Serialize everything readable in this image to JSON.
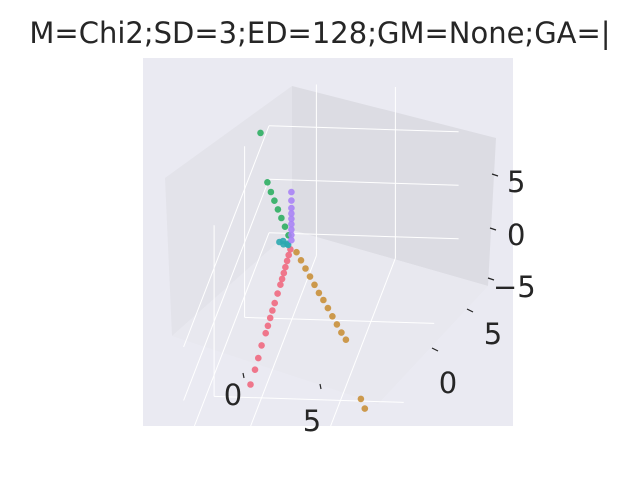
{
  "title": "M=Chi2;SD=3;ED=128;GM=None;GA=|",
  "chart_data": {
    "type": "scatter",
    "projection": "3d",
    "title": "M=Chi2;SD=3;ED=128;GM=None;GA=|",
    "xlim": [
      -4,
      10
    ],
    "ylim": [
      -3,
      9
    ],
    "zlim": [
      -7,
      9
    ],
    "x_ticks": [
      0,
      5
    ],
    "y_ticks": [
      0,
      5
    ],
    "z_ticks": [
      -5,
      0,
      5
    ],
    "x_tick_labels": [
      "0",
      "5"
    ],
    "y_tick_labels": [
      "0",
      "5"
    ],
    "z_tick_labels": [
      "−5",
      "0",
      "5"
    ],
    "grid": true,
    "legend": "none",
    "colors": {
      "pane": "#EAEAF2",
      "grid": "#FFFFFF",
      "text": "#262626",
      "series": [
        "#F0697F",
        "#C9903A",
        "#2EAE63",
        "#2CA8B0",
        "#A983F5"
      ]
    },
    "series": [
      {
        "color": "#F0697F",
        "points": [
          [
            0.4,
            0.05,
            0.1
          ],
          [
            0.8,
            0.1,
            0.15
          ],
          [
            1.2,
            0.15,
            0.2
          ],
          [
            1.6,
            0.2,
            0.2
          ],
          [
            2.0,
            0.25,
            0.25
          ],
          [
            2.4,
            0.3,
            0.3
          ],
          [
            2.8,
            0.35,
            0.35
          ],
          [
            3.4,
            0.4,
            0.4
          ],
          [
            4.0,
            0.45,
            0.4
          ],
          [
            4.5,
            0.5,
            0.45
          ],
          [
            5.0,
            0.55,
            0.5
          ],
          [
            5.5,
            0.6,
            0.5
          ],
          [
            6.0,
            0.65,
            0.55
          ],
          [
            6.8,
            0.7,
            0.6
          ],
          [
            7.6,
            0.8,
            0.6
          ],
          [
            8.4,
            0.9,
            0.7
          ],
          [
            9.4,
            1.0,
            0.8
          ]
        ]
      },
      {
        "color": "#C9903A",
        "points": [
          [
            0.3,
            0.4,
            -0.3
          ],
          [
            0.6,
            0.8,
            -0.6
          ],
          [
            0.9,
            1.2,
            -0.9
          ],
          [
            1.2,
            1.6,
            -1.2
          ],
          [
            1.5,
            2.0,
            -1.5
          ],
          [
            1.8,
            2.4,
            -1.8
          ],
          [
            2.1,
            2.8,
            -2.0
          ],
          [
            2.4,
            3.2,
            -2.3
          ],
          [
            2.7,
            3.6,
            -2.6
          ],
          [
            3.0,
            4.0,
            -2.9
          ],
          [
            3.3,
            4.4,
            -3.2
          ],
          [
            3.6,
            4.8,
            -3.4
          ],
          [
            5.8,
            6.6,
            -5.6
          ],
          [
            6.2,
            7.0,
            -5.9
          ]
        ]
      },
      {
        "color": "#2EAE63",
        "points": [
          [
            -0.2,
            -0.3,
            0.5
          ],
          [
            -0.4,
            -0.6,
            1.0
          ],
          [
            -0.6,
            -0.9,
            1.5
          ],
          [
            -0.8,
            -1.2,
            2.0
          ],
          [
            -1.0,
            -1.5,
            2.5
          ],
          [
            -1.2,
            -1.8,
            3.0
          ],
          [
            -1.4,
            -2.1,
            3.6
          ],
          [
            -2.6,
            -3.0,
            6.4
          ]
        ]
      },
      {
        "color": "#2CA8B0",
        "points": [
          [
            0.0,
            -0.3,
            0.0
          ],
          [
            0.1,
            -0.5,
            0.1
          ],
          [
            -0.1,
            -0.6,
            0.1
          ],
          [
            0.0,
            -0.8,
            0.15
          ],
          [
            0.1,
            -0.2,
            0.05
          ]
        ]
      },
      {
        "color": "#A983F5",
        "points": [
          [
            0.1,
            0.0,
            0.5
          ],
          [
            0.1,
            0.0,
            1.0
          ],
          [
            0.1,
            0.0,
            1.5
          ],
          [
            0.1,
            0.0,
            2.0
          ],
          [
            0.1,
            0.0,
            2.5
          ],
          [
            0.1,
            0.0,
            3.0
          ],
          [
            0.1,
            0.0,
            3.5
          ],
          [
            0.1,
            0.0,
            4.2
          ],
          [
            0.1,
            0.0,
            5.0
          ]
        ]
      }
    ]
  }
}
